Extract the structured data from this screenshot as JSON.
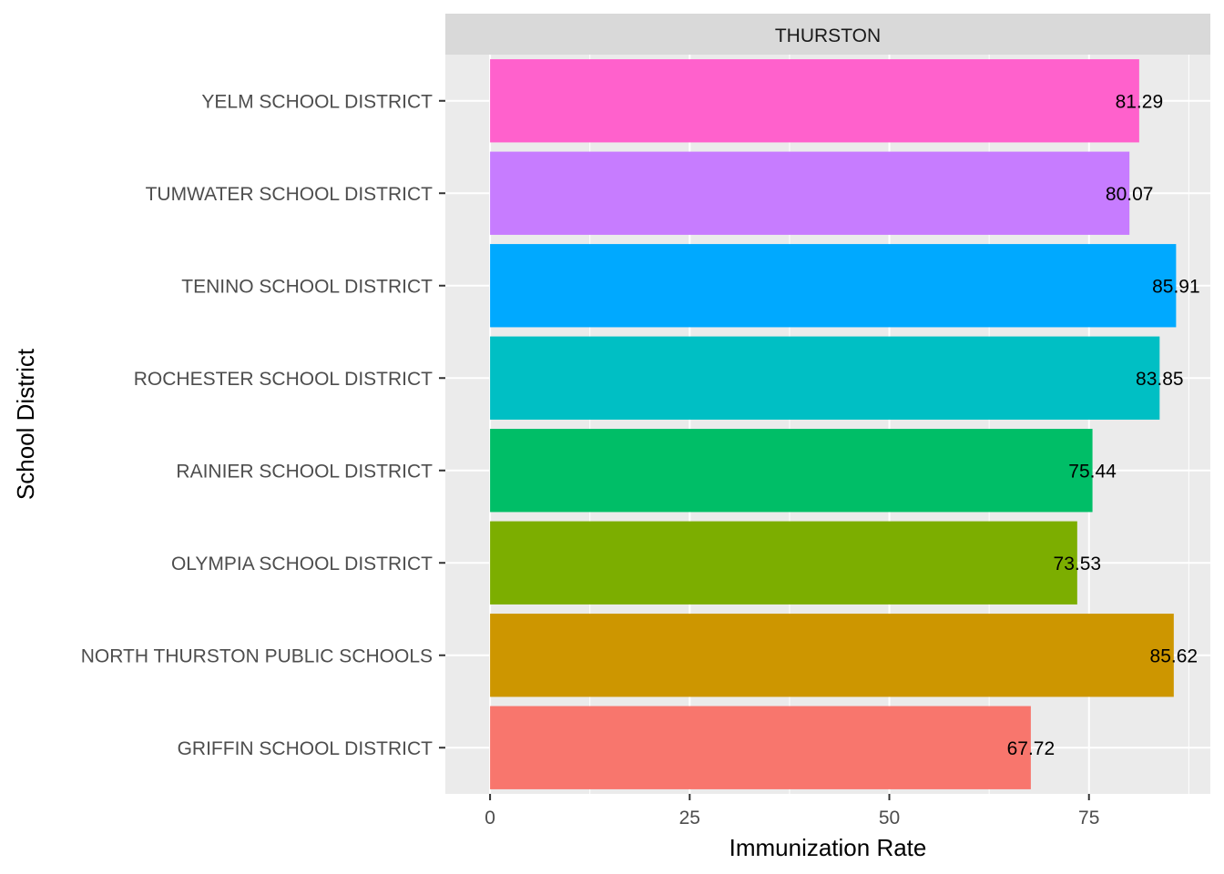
{
  "chart_data": {
    "type": "bar",
    "orientation": "horizontal",
    "facet": "THURSTON",
    "xlabel": "Immunization Rate",
    "ylabel": "School District",
    "xlim": [
      -5.6,
      90.2
    ],
    "xticks": [
      0,
      25,
      50,
      75
    ],
    "categories": [
      "GRIFFIN SCHOOL DISTRICT",
      "NORTH THURSTON PUBLIC SCHOOLS",
      "OLYMPIA SCHOOL DISTRICT",
      "RAINIER SCHOOL DISTRICT",
      "ROCHESTER SCHOOL DISTRICT",
      "TENINO SCHOOL DISTRICT",
      "TUMWATER SCHOOL DISTRICT",
      "YELM SCHOOL DISTRICT"
    ],
    "values": [
      67.72,
      85.62,
      73.53,
      75.44,
      83.85,
      85.91,
      80.07,
      81.29
    ],
    "data_labels": [
      "67.72",
      "85.62",
      "73.53",
      "75.44",
      "83.85",
      "85.91",
      "80.07",
      "81.29"
    ],
    "colors": [
      "#F8766D",
      "#CD9600",
      "#7CAE00",
      "#00BE67",
      "#00BFC4",
      "#00A9FF",
      "#C77CFF",
      "#FF61CC"
    ],
    "grid": true,
    "legend": "none"
  }
}
